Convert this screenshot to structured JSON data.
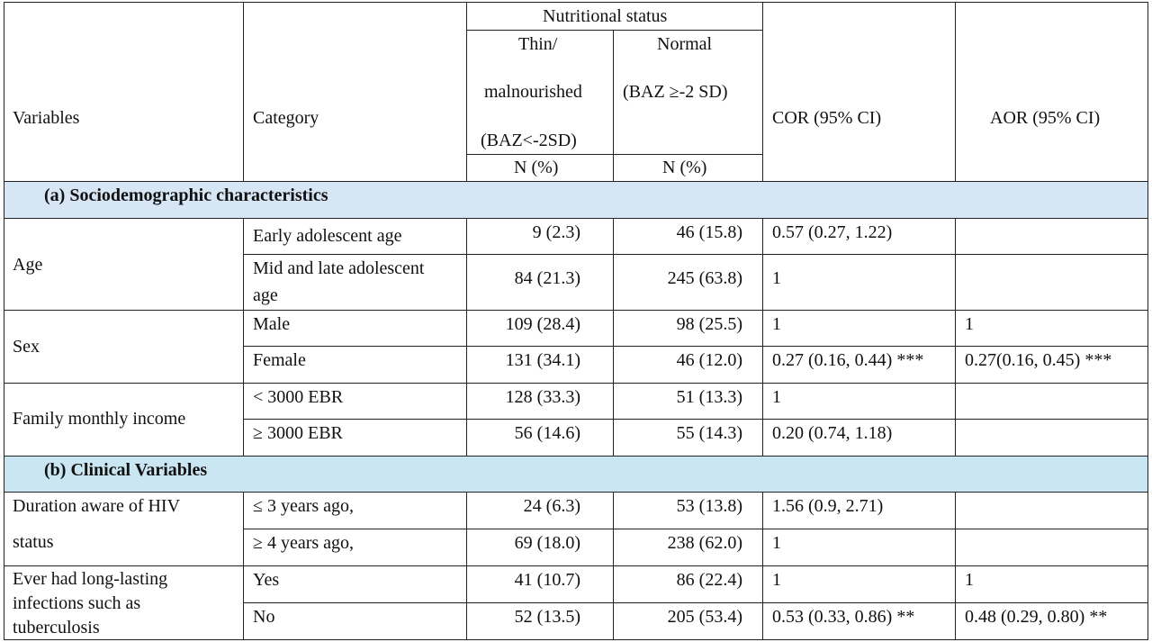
{
  "header": {
    "variables": "Variables",
    "category": "Category",
    "nutritional_status": "Nutritional status",
    "thin_line1": "Thin/",
    "thin_line2": "malnourished",
    "thin_line3": "(BAZ<-2SD)",
    "normal_line1": "Normal",
    "normal_line2": "(BAZ ≥-2 SD)",
    "cor": "COR (95% CI)",
    "aor": "AOR (95% CI)",
    "n_pct_thin": "N (%)",
    "n_pct_normal": "N (%)"
  },
  "section_a": "(a)  Sociodemographic characteristics",
  "section_b": "(b)  Clinical Variables",
  "rows": {
    "age": {
      "variable": "Age",
      "r1": {
        "category": "Early adolescent age",
        "thin": "9 (2.3)",
        "normal": "46 (15.8)",
        "cor": "0.57 (0.27, 1.22)",
        "aor": ""
      },
      "r2": {
        "category_l1": "Mid and late adolescent",
        "category_l2": "age",
        "thin": "84 (21.3)",
        "normal": "245 (63.8)",
        "cor": "1",
        "aor": ""
      }
    },
    "sex": {
      "variable": "Sex",
      "r1": {
        "category": "Male",
        "thin": "109 (28.4)",
        "normal": "98 (25.5)",
        "cor": "1",
        "aor": "1"
      },
      "r2": {
        "category": "Female",
        "thin": "131 (34.1)",
        "normal": "46 (12.0)",
        "cor": "0.27 (0.16, 0.44) ***",
        "aor": "0.27(0.16, 0.45) ***"
      }
    },
    "income": {
      "variable": "Family monthly income",
      "r1": {
        "category": "< 3000 EBR",
        "thin": "128 (33.3)",
        "normal": "51 (13.3)",
        "cor": "1",
        "aor": ""
      },
      "r2": {
        "category": "≥ 3000 EBR",
        "thin": "56 (14.6)",
        "normal": "55 (14.3)",
        "cor": "0.20 (0.74, 1.18)",
        "aor": ""
      }
    },
    "duration": {
      "variable_l1": "Duration aware of HIV",
      "variable_l2": "status",
      "r1": {
        "category": "≤ 3 years ago,",
        "thin": "24 (6.3)",
        "normal": "53 (13.8)",
        "cor": "1.56 (0.9, 2.71)",
        "aor": ""
      },
      "r2": {
        "category": "≥ 4 years ago,",
        "thin": "69 (18.0)",
        "normal": "238 (62.0)",
        "cor": "1",
        "aor": ""
      }
    },
    "infection": {
      "variable_l1": "Ever had long-lasting",
      "variable_l2": "infections such as",
      "variable_l3": "tuberculosis",
      "r1": {
        "category": "Yes",
        "thin": "41 (10.7)",
        "normal": "86 (22.4)",
        "cor": "1",
        "aor": "1"
      },
      "r2": {
        "category": "No",
        "thin": "52 (13.5)",
        "normal": "205 (53.4)",
        "cor": "0.53 (0.33, 0.86) **",
        "aor": "0.48 (0.29, 0.80) **"
      }
    }
  }
}
